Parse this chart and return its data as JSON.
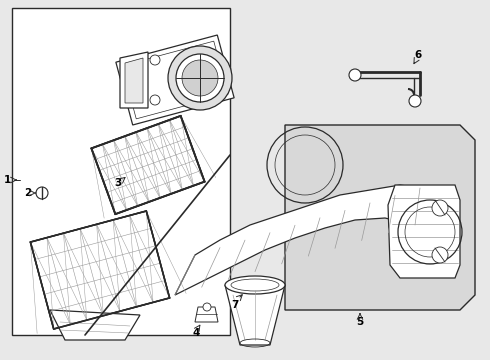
{
  "bg_color": "#e8e8e8",
  "white": "#ffffff",
  "light_gray": "#d8d8d8",
  "line_color": "#2a2a2a",
  "grid_color": "#999999",
  "shadow_color": "#bbbbbb",
  "lw_main": 0.9,
  "lw_thin": 0.5,
  "lw_thick": 1.1,
  "label_fontsize": 7.5,
  "fig_w": 4.9,
  "fig_h": 3.6,
  "dpi": 100
}
